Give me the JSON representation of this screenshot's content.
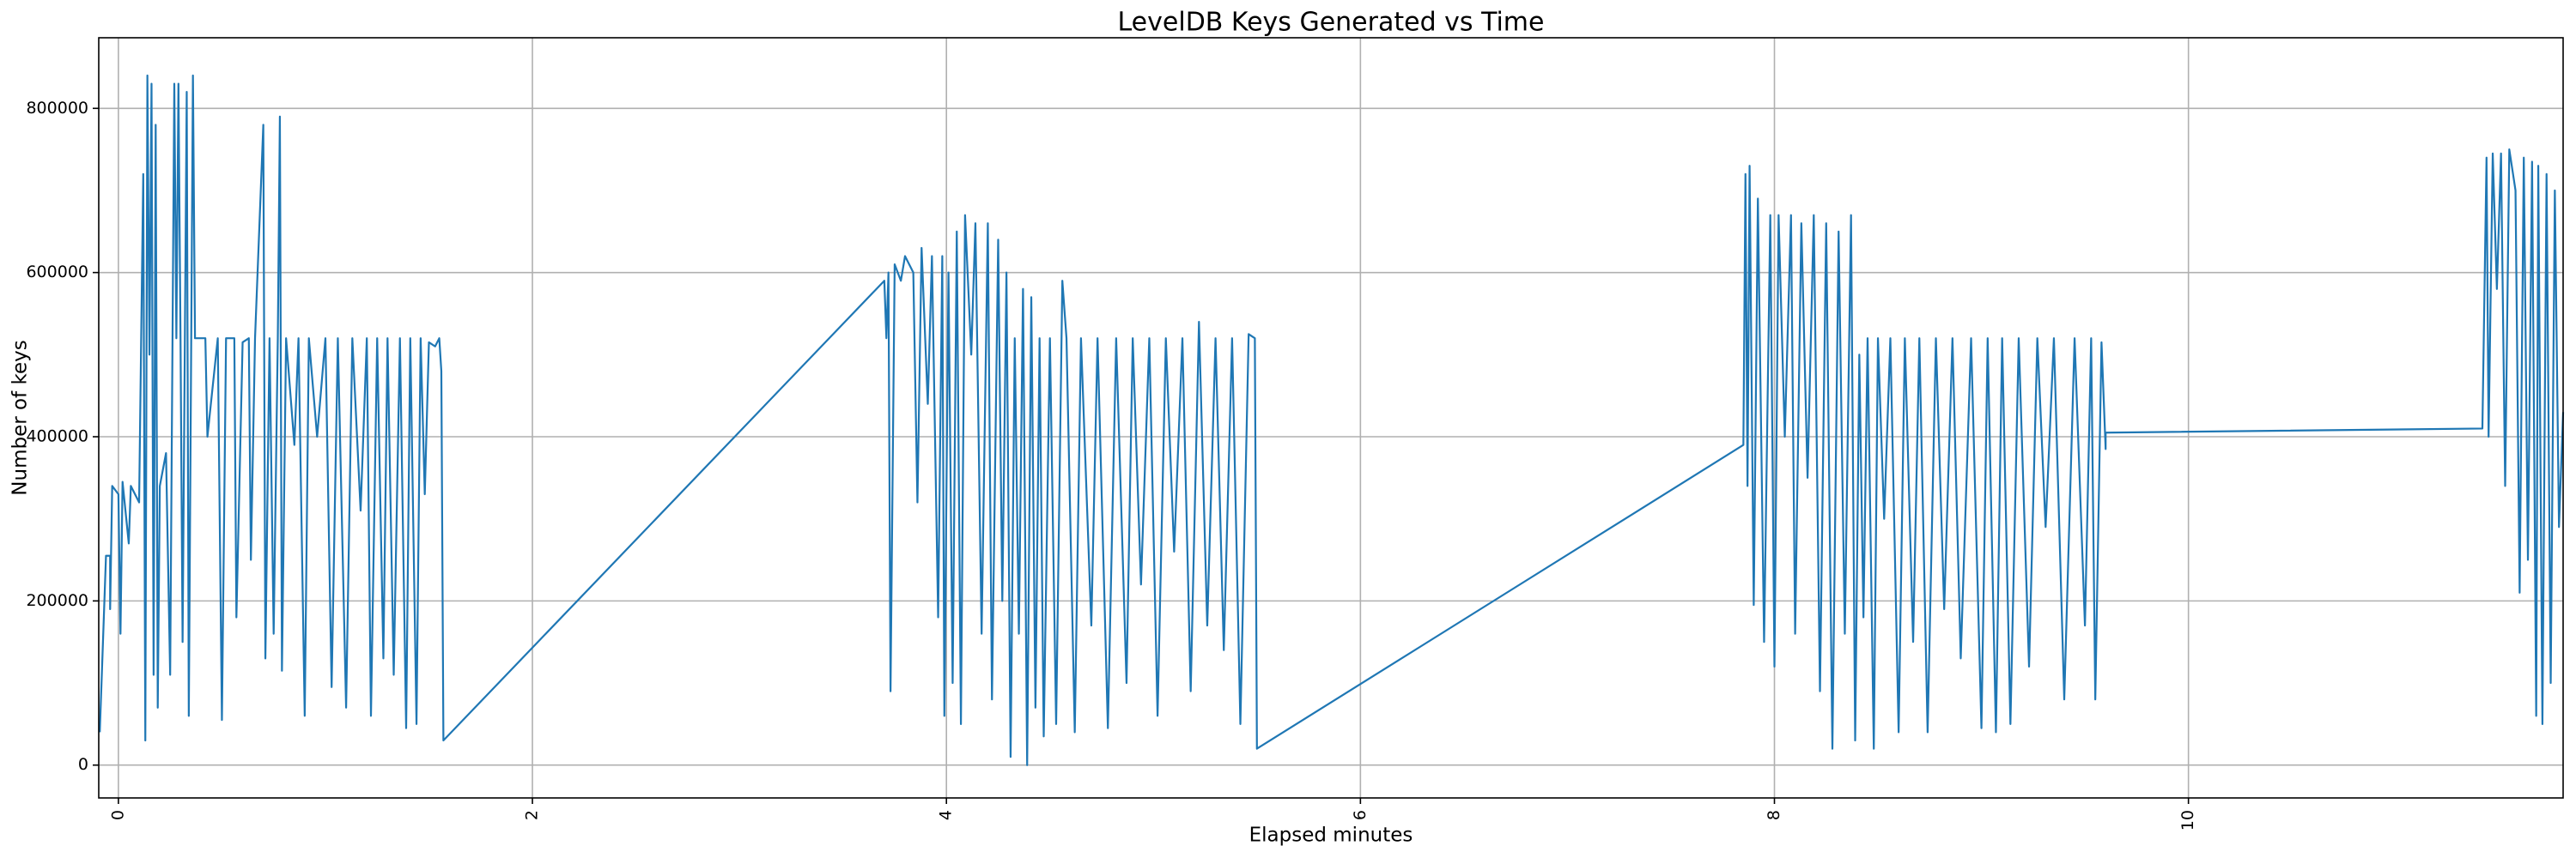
{
  "chart_data": {
    "type": "line",
    "title": "LevelDB Keys Generated vs Time",
    "x_label": "Elapsed minutes",
    "y_label": "Number of keys",
    "color": "#1f77b4",
    "grid": true,
    "xlim": [
      -0.095,
      11.81
    ],
    "ylim": [
      -40000,
      886000
    ],
    "xticks": [
      0,
      2,
      4,
      6,
      8,
      10
    ],
    "yticks": [
      0,
      200000,
      400000,
      600000,
      800000
    ],
    "x": [
      -0.09,
      -0.06,
      -0.04,
      -0.04,
      -0.03,
      0.0,
      0.01,
      0.02,
      0.05,
      0.06,
      0.1,
      0.12,
      0.13,
      0.14,
      0.15,
      0.16,
      0.17,
      0.18,
      0.19,
      0.2,
      0.23,
      0.25,
      0.27,
      0.28,
      0.29,
      0.3,
      0.31,
      0.33,
      0.34,
      0.36,
      0.37,
      0.42,
      0.43,
      0.48,
      0.5,
      0.52,
      0.56,
      0.57,
      0.6,
      0.63,
      0.64,
      0.66,
      0.7,
      0.71,
      0.73,
      0.75,
      0.77,
      0.78,
      0.79,
      0.81,
      0.85,
      0.87,
      0.9,
      0.92,
      0.96,
      1.0,
      1.03,
      1.06,
      1.1,
      1.13,
      1.17,
      1.2,
      1.22,
      1.25,
      1.28,
      1.3,
      1.33,
      1.36,
      1.39,
      1.41,
      1.44,
      1.46,
      1.48,
      1.5,
      1.53,
      1.55,
      1.56,
      1.57,
      3.7,
      3.71,
      3.72,
      3.73,
      3.75,
      3.78,
      3.8,
      3.84,
      3.86,
      3.88,
      3.91,
      3.93,
      3.96,
      3.98,
      3.99,
      4.01,
      4.03,
      4.05,
      4.07,
      4.09,
      4.12,
      4.14,
      4.17,
      4.2,
      4.22,
      4.25,
      4.27,
      4.29,
      4.31,
      4.33,
      4.35,
      4.37,
      4.39,
      4.41,
      4.43,
      4.45,
      4.47,
      4.5,
      4.53,
      4.56,
      4.58,
      4.62,
      4.65,
      4.7,
      4.73,
      4.78,
      4.82,
      4.87,
      4.9,
      4.94,
      4.98,
      5.02,
      5.06,
      5.1,
      5.14,
      5.18,
      5.22,
      5.26,
      5.3,
      5.34,
      5.38,
      5.42,
      5.46,
      5.49,
      5.5,
      7.85,
      7.86,
      7.87,
      7.88,
      7.9,
      7.92,
      7.95,
      7.98,
      8.0,
      8.02,
      8.05,
      8.08,
      8.1,
      8.13,
      8.16,
      8.19,
      8.22,
      8.25,
      8.28,
      8.31,
      8.34,
      8.37,
      8.39,
      8.41,
      8.43,
      8.45,
      8.48,
      8.5,
      8.53,
      8.56,
      8.6,
      8.63,
      8.67,
      8.7,
      8.74,
      8.78,
      8.82,
      8.86,
      8.9,
      8.95,
      9.0,
      9.03,
      9.07,
      9.1,
      9.14,
      9.18,
      9.23,
      9.27,
      9.31,
      9.35,
      9.4,
      9.45,
      9.5,
      9.53,
      9.55,
      9.58,
      9.6,
      9.6,
      11.42,
      11.44,
      11.45,
      11.47,
      11.49,
      11.51,
      11.53,
      11.55,
      11.58,
      11.6,
      11.62,
      11.64,
      11.66,
      11.68,
      11.69,
      11.71,
      11.73,
      11.75,
      11.77,
      11.79,
      11.81
    ],
    "values": [
      40000,
      255000,
      255000,
      190000,
      340000,
      330000,
      160000,
      345000,
      270000,
      340000,
      320000,
      720000,
      30000,
      840000,
      500000,
      830000,
      110000,
      780000,
      70000,
      340000,
      380000,
      110000,
      830000,
      520000,
      830000,
      520000,
      150000,
      820000,
      60000,
      840000,
      520000,
      520000,
      400000,
      520000,
      55000,
      520000,
      520000,
      180000,
      515000,
      520000,
      250000,
      520000,
      780000,
      130000,
      520000,
      160000,
      520000,
      790000,
      115000,
      520000,
      390000,
      520000,
      60000,
      520000,
      400000,
      520000,
      95000,
      520000,
      70000,
      520000,
      310000,
      520000,
      60000,
      520000,
      130000,
      520000,
      110000,
      520000,
      45000,
      520000,
      50000,
      520000,
      330000,
      515000,
      510000,
      520000,
      480000,
      30000,
      590000,
      520000,
      600000,
      90000,
      610000,
      590000,
      620000,
      600000,
      320000,
      630000,
      440000,
      620000,
      180000,
      620000,
      60000,
      600000,
      100000,
      650000,
      50000,
      670000,
      500000,
      660000,
      160000,
      660000,
      80000,
      640000,
      200000,
      600000,
      10000,
      520000,
      160000,
      580000,
      0,
      570000,
      70000,
      520000,
      35000,
      520000,
      50000,
      590000,
      520000,
      40000,
      520000,
      170000,
      520000,
      45000,
      520000,
      100000,
      520000,
      220000,
      520000,
      60000,
      520000,
      260000,
      520000,
      90000,
      540000,
      170000,
      520000,
      140000,
      520000,
      50000,
      525000,
      520000,
      20000,
      390000,
      720000,
      340000,
      730000,
      195000,
      690000,
      150000,
      670000,
      120000,
      670000,
      400000,
      670000,
      160000,
      660000,
      350000,
      670000,
      90000,
      660000,
      20000,
      650000,
      160000,
      670000,
      30000,
      500000,
      180000,
      520000,
      20000,
      520000,
      300000,
      520000,
      40000,
      520000,
      150000,
      520000,
      40000,
      520000,
      190000,
      520000,
      130000,
      520000,
      45000,
      520000,
      40000,
      520000,
      50000,
      520000,
      120000,
      520000,
      290000,
      520000,
      80000,
      520000,
      170000,
      520000,
      80000,
      515000,
      385000,
      405000,
      410000,
      740000,
      400000,
      745000,
      580000,
      745000,
      340000,
      750000,
      700000,
      210000,
      740000,
      250000,
      735000,
      60000,
      730000,
      50000,
      720000,
      100000,
      700000,
      290000,
      430000
    ]
  }
}
